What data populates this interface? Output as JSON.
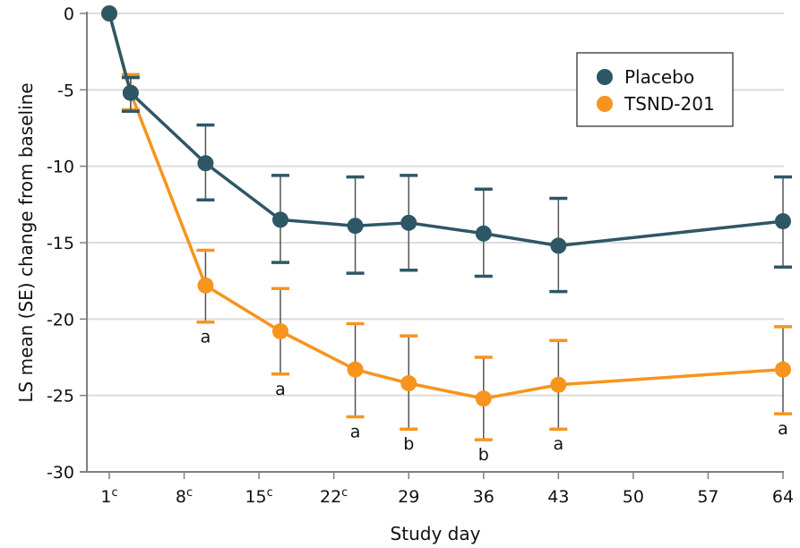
{
  "chart_data": {
    "type": "line",
    "title": "",
    "xlabel": "Study day",
    "ylabel": "LS mean (SE) change from baseline",
    "xlim": [
      -4,
      64
    ],
    "ylim": [
      -30,
      0
    ],
    "yticks": [
      0,
      -5,
      -10,
      -15,
      -20,
      -25,
      -30
    ],
    "ytick_labels": [
      "0",
      "-5",
      "-10",
      "-15",
      "-20",
      "-25",
      "-30"
    ],
    "xticks": [
      {
        "value": 1,
        "label": "1",
        "sup": "c"
      },
      {
        "value": 8,
        "label": "8",
        "sup": "c"
      },
      {
        "value": 15,
        "label": "15",
        "sup": "c"
      },
      {
        "value": 22,
        "label": "22",
        "sup": "c"
      },
      {
        "value": 29,
        "label": "29",
        "sup": ""
      },
      {
        "value": 36,
        "label": "36",
        "sup": ""
      },
      {
        "value": 43,
        "label": "43",
        "sup": ""
      },
      {
        "value": 50,
        "label": "50",
        "sup": ""
      },
      {
        "value": 57,
        "label": "57",
        "sup": ""
      },
      {
        "value": 64,
        "label": "64",
        "sup": ""
      }
    ],
    "grid": "horizontal",
    "legend_position": "top-right",
    "series": [
      {
        "name": "Placebo",
        "color": "#2e5766",
        "x": [
          1,
          3,
          10,
          17,
          24,
          29,
          36,
          43,
          64
        ],
        "y": [
          0,
          -5.2,
          -9.8,
          -13.5,
          -13.9,
          -13.7,
          -14.4,
          -15.2,
          -13.6
        ],
        "upper": [
          null,
          -4.2,
          -7.3,
          -10.6,
          -10.7,
          -10.6,
          -11.5,
          -12.1,
          -10.7
        ],
        "lower": [
          null,
          -6.4,
          -12.2,
          -16.3,
          -17.0,
          -16.8,
          -17.2,
          -18.2,
          -16.6
        ]
      },
      {
        "name": "TSND-201",
        "color": "#f7941d",
        "x": [
          1,
          3,
          10,
          17,
          24,
          29,
          36,
          43,
          64
        ],
        "y": [
          0,
          -5.2,
          -17.8,
          -20.8,
          -23.3,
          -24.2,
          -25.2,
          -24.3,
          -23.3
        ],
        "upper": [
          null,
          -4.0,
          -15.5,
          -18.0,
          -20.3,
          -21.1,
          -22.5,
          -21.4,
          -20.5
        ],
        "lower": [
          null,
          -6.3,
          -20.2,
          -23.6,
          -26.4,
          -27.2,
          -27.9,
          -27.2,
          -26.2
        ]
      }
    ],
    "annotations": [
      {
        "x": 10,
        "text": "a"
      },
      {
        "x": 17,
        "text": "a"
      },
      {
        "x": 24,
        "text": "a"
      },
      {
        "x": 29,
        "text": "b"
      },
      {
        "x": 36,
        "text": "b"
      },
      {
        "x": 43,
        "text": "a"
      },
      {
        "x": 64,
        "text": "a"
      }
    ],
    "colors": {
      "grid": "#dcdcdc",
      "axis": "#808080",
      "errorbar_stem": "#555555"
    }
  }
}
